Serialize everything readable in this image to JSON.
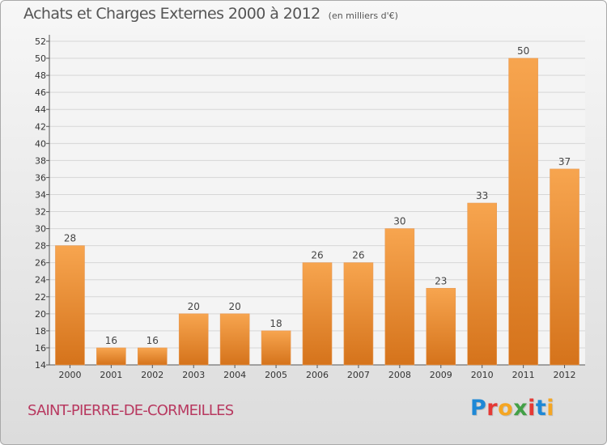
{
  "title": "Achats et Charges Externes 2000 à 2012",
  "unit_note": "(en milliers d'€)",
  "commune": "SAINT-PIERRE-DE-CORMEILLES",
  "logo": {
    "letters": [
      {
        "char": "P",
        "color": "#1e88d6"
      },
      {
        "char": "r",
        "color": "#e53935"
      },
      {
        "char": "o",
        "color": "#f5a623"
      },
      {
        "char": "x",
        "color": "#43a047"
      },
      {
        "char": "i",
        "color": "#e53935"
      },
      {
        "char": "t",
        "color": "#1e88d6"
      },
      {
        "char": "i",
        "color": "#f5a623"
      }
    ]
  },
  "colors": {
    "bar_top": "#f7a54f",
    "bar_bottom": "#d5731b",
    "label": "#444444",
    "axis_text": "#333333",
    "grid": "#d6d6d6"
  },
  "chart_data": {
    "type": "bar",
    "categories": [
      "2000",
      "2001",
      "2002",
      "2003",
      "2004",
      "2005",
      "2006",
      "2007",
      "2008",
      "2009",
      "2010",
      "2011",
      "2012"
    ],
    "values": [
      28,
      16,
      16,
      20,
      20,
      18,
      26,
      26,
      30,
      23,
      33,
      50,
      37
    ],
    "data_labels": [
      "28",
      "16",
      "16",
      "20",
      "20",
      "18",
      "26",
      "26",
      "30",
      "23",
      "33",
      "50",
      "37"
    ],
    "yticks": [
      "14",
      "16",
      "18",
      "20",
      "22",
      "24",
      "26",
      "28",
      "30",
      "32",
      "34",
      "36",
      "38",
      "40",
      "42",
      "44",
      "46",
      "48",
      "50",
      "52"
    ],
    "ylim": [
      14,
      52
    ],
    "grid": true,
    "xlabel": "",
    "ylabel": ""
  }
}
